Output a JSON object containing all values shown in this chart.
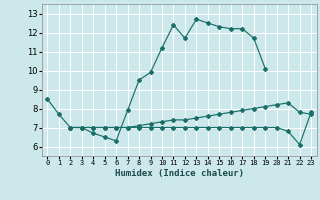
{
  "xlabel": "Humidex (Indice chaleur)",
  "bg_color": "#cce8ea",
  "line_color": "#1a6e6a",
  "grid_color": "#ffffff",
  "xlim": [
    -0.5,
    23.5
  ],
  "ylim": [
    5.5,
    13.5
  ],
  "xticks": [
    0,
    1,
    2,
    3,
    4,
    5,
    6,
    7,
    8,
    9,
    10,
    11,
    12,
    13,
    14,
    15,
    16,
    17,
    18,
    19,
    20,
    21,
    22,
    23
  ],
  "yticks": [
    6,
    7,
    8,
    9,
    10,
    11,
    12,
    13
  ],
  "series": [
    {
      "x": [
        0,
        1,
        2,
        3,
        4,
        5,
        6,
        7,
        8,
        9,
        10,
        11,
        12,
        13,
        14,
        15,
        16,
        17,
        18,
        19
      ],
      "y": [
        8.5,
        7.7,
        7.0,
        7.0,
        6.7,
        6.5,
        6.3,
        7.9,
        9.5,
        9.9,
        11.2,
        12.4,
        11.7,
        12.7,
        12.5,
        12.3,
        12.2,
        12.2,
        11.7,
        10.1
      ]
    },
    {
      "x": [
        2,
        3,
        4,
        5,
        6,
        7,
        8,
        9,
        10,
        11,
        12,
        13,
        14,
        15,
        16,
        17,
        18,
        19,
        20,
        21,
        22,
        23
      ],
      "y": [
        7.0,
        7.0,
        7.0,
        7.0,
        7.0,
        7.0,
        7.1,
        7.2,
        7.3,
        7.4,
        7.4,
        7.5,
        7.6,
        7.7,
        7.8,
        7.9,
        8.0,
        8.1,
        8.2,
        8.3,
        7.8,
        7.7
      ]
    },
    {
      "x": [
        2,
        3,
        4,
        5,
        6,
        7,
        8,
        9,
        10,
        11,
        12,
        13,
        14,
        15,
        16,
        17,
        18,
        19,
        20,
        21,
        22,
        23
      ],
      "y": [
        7.0,
        7.0,
        7.0,
        7.0,
        7.0,
        7.0,
        7.0,
        7.0,
        7.0,
        7.0,
        7.0,
        7.0,
        7.0,
        7.0,
        7.0,
        7.0,
        7.0,
        7.0,
        7.0,
        6.8,
        6.1,
        7.8
      ]
    }
  ]
}
